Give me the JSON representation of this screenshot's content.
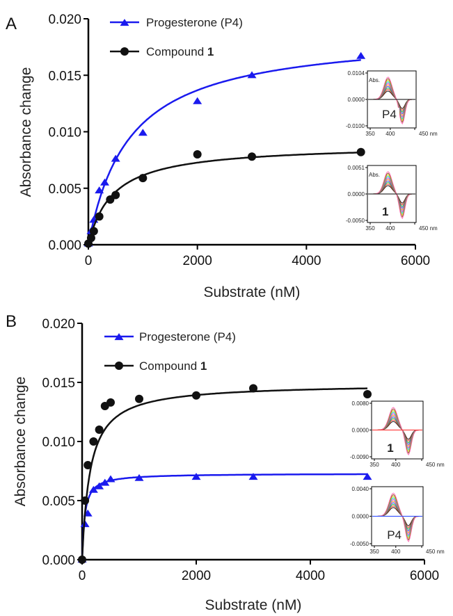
{
  "chart_data": [
    {
      "type": "scatter",
      "panel_label": "A",
      "title": "",
      "xlabel": "Substrate (nM)",
      "ylabel": "Absorbance change",
      "xlim": [
        0,
        6000
      ],
      "ylim": [
        0,
        0.02
      ],
      "x_ticks": [
        "0",
        "2000",
        "4000",
        "6000"
      ],
      "y_ticks": [
        "0.000",
        "0.005",
        "0.010",
        "0.015",
        "0.020"
      ],
      "grid": false,
      "legend_position": "top-left",
      "series": [
        {
          "name": "Progesterone (P4)",
          "name_bold": "",
          "color": "#1a1aee",
          "marker": "triangle",
          "points": [
            {
              "x": 0,
              "y": 0.0001
            },
            {
              "x": 50,
              "y": 0.0012
            },
            {
              "x": 100,
              "y": 0.0022
            },
            {
              "x": 200,
              "y": 0.0048
            },
            {
              "x": 300,
              "y": 0.0055
            },
            {
              "x": 500,
              "y": 0.0076
            },
            {
              "x": 1000,
              "y": 0.0099
            },
            {
              "x": 2000,
              "y": 0.0127
            },
            {
              "x": 3000,
              "y": 0.015
            },
            {
              "x": 5000,
              "y": 0.0167
            }
          ],
          "fit": {
            "model": "hyperbolic",
            "Bmax": 0.0188,
            "Kd": 750
          }
        },
        {
          "name": "Compound ",
          "name_bold": "1",
          "color": "#111111",
          "marker": "circle",
          "points": [
            {
              "x": 0,
              "y": 0.0001
            },
            {
              "x": 50,
              "y": 0.0006
            },
            {
              "x": 100,
              "y": 0.0012
            },
            {
              "x": 200,
              "y": 0.0025
            },
            {
              "x": 400,
              "y": 0.004
            },
            {
              "x": 500,
              "y": 0.0044
            },
            {
              "x": 1000,
              "y": 0.0059
            },
            {
              "x": 2000,
              "y": 0.008
            },
            {
              "x": 3000,
              "y": 0.0078
            },
            {
              "x": 5000,
              "y": 0.0082
            }
          ],
          "fit": {
            "model": "hyperbolic",
            "Bmax": 0.0089,
            "Kd": 450
          }
        }
      ],
      "insets": [
        {
          "tag": "P4",
          "tag_bold": false,
          "y_ticks": [
            "0.0104",
            "0.0000",
            "-0.0100"
          ],
          "x_ticks": [
            "350",
            "400",
            "450 nm"
          ],
          "ylabel": "Abs."
        },
        {
          "tag": "1",
          "tag_bold": true,
          "y_ticks": [
            "0.0051",
            "0.0000",
            "-0.0050"
          ],
          "x_ticks": [
            "350",
            "400",
            "450 nm"
          ],
          "ylabel": "Abs."
        }
      ]
    },
    {
      "type": "scatter",
      "panel_label": "B",
      "title": "",
      "xlabel": "Substrate (nM)",
      "ylabel": "Absorbance change",
      "xlim": [
        0,
        6000
      ],
      "ylim": [
        0,
        0.02
      ],
      "x_ticks": [
        "0",
        "2000",
        "4000",
        "6000"
      ],
      "y_ticks": [
        "0.000",
        "0.005",
        "0.010",
        "0.015",
        "0.020"
      ],
      "grid": false,
      "legend_position": "top-left",
      "series": [
        {
          "name": "Progesterone (P4)",
          "name_bold": "",
          "color": "#1a1aee",
          "marker": "triangle",
          "points": [
            {
              "x": 0,
              "y": 0.0
            },
            {
              "x": 50,
              "y": 0.003
            },
            {
              "x": 100,
              "y": 0.0039
            },
            {
              "x": 200,
              "y": 0.0059
            },
            {
              "x": 300,
              "y": 0.0062
            },
            {
              "x": 400,
              "y": 0.0065
            },
            {
              "x": 500,
              "y": 0.0068
            },
            {
              "x": 1000,
              "y": 0.0069
            },
            {
              "x": 2000,
              "y": 0.007
            },
            {
              "x": 3000,
              "y": 0.007
            },
            {
              "x": 5000,
              "y": 0.007
            }
          ],
          "fit": {
            "model": "hyperbolic",
            "Bmax": 0.0073,
            "Kd": 45
          }
        },
        {
          "name": "Compound ",
          "name_bold": "1",
          "color": "#111111",
          "marker": "circle",
          "points": [
            {
              "x": 0,
              "y": 0.0
            },
            {
              "x": 50,
              "y": 0.005
            },
            {
              "x": 100,
              "y": 0.008
            },
            {
              "x": 200,
              "y": 0.01
            },
            {
              "x": 300,
              "y": 0.011
            },
            {
              "x": 400,
              "y": 0.013
            },
            {
              "x": 500,
              "y": 0.0133
            },
            {
              "x": 1000,
              "y": 0.0136
            },
            {
              "x": 2000,
              "y": 0.0139
            },
            {
              "x": 3000,
              "y": 0.0145
            },
            {
              "x": 5000,
              "y": 0.014
            }
          ],
          "fit": {
            "model": "hyperbolic",
            "Bmax": 0.0149,
            "Kd": 140
          }
        }
      ],
      "insets": [
        {
          "tag": "1",
          "tag_bold": true,
          "y_ticks": [
            "0.0080",
            "0.0000",
            "-0.0090"
          ],
          "x_ticks": [
            "350",
            "400",
            "450 nm"
          ],
          "ylabel": ""
        },
        {
          "tag": "P4",
          "tag_bold": false,
          "y_ticks": [
            "0.0040",
            "0.0000",
            "-0.0050"
          ],
          "x_ticks": [
            "350",
            "400",
            "450 nm"
          ],
          "ylabel": ""
        }
      ]
    }
  ]
}
